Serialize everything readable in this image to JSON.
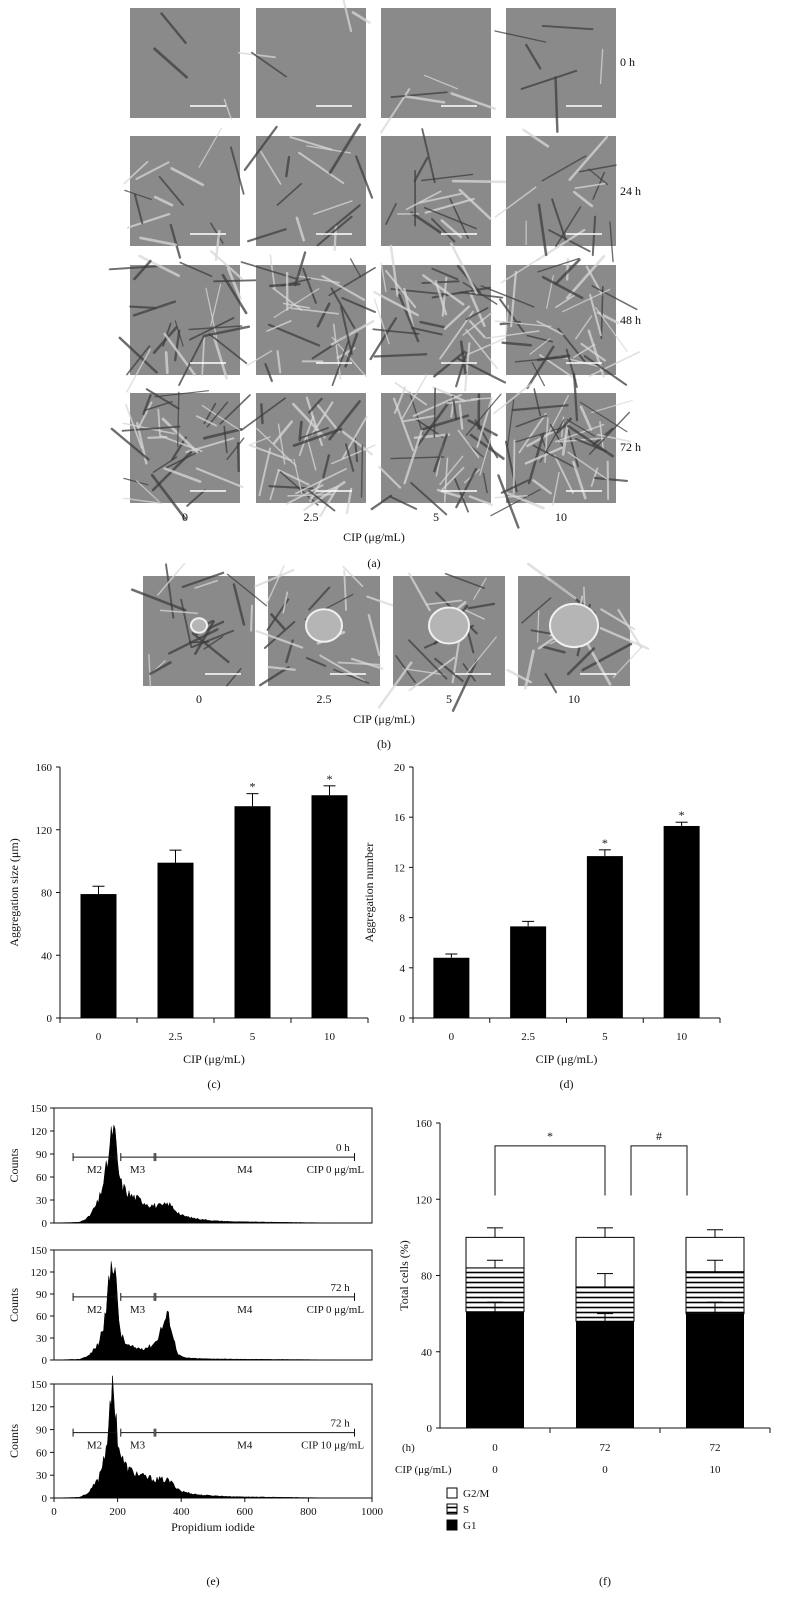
{
  "panel_a": {
    "time_labels": [
      "0 h",
      "24 h",
      "48 h",
      "72 h"
    ],
    "conc_labels": [
      "0",
      "2.5",
      "5",
      "10"
    ],
    "axis_label": "CIP (μg/mL)",
    "caption": "(a)"
  },
  "panel_b": {
    "conc_labels": [
      "0",
      "2.5",
      "5",
      "10"
    ],
    "axis_label": "CIP (μg/mL)",
    "caption": "(b)"
  },
  "chart_data": [
    {
      "id": "c",
      "type": "bar",
      "categories": [
        "0",
        "2.5",
        "5",
        "10"
      ],
      "values": [
        79,
        99,
        135,
        142
      ],
      "errors": [
        5,
        8,
        8,
        6
      ],
      "significance": [
        "",
        "",
        "*",
        "*"
      ],
      "xlabel": "CIP (μg/mL)",
      "ylabel": "Aggregation size (μm)",
      "ylim": [
        0,
        160
      ],
      "yticks": [
        0,
        40,
        80,
        120,
        160
      ],
      "caption": "(c)"
    },
    {
      "id": "d",
      "type": "bar",
      "categories": [
        "0",
        "2.5",
        "5",
        "10"
      ],
      "values": [
        4.8,
        7.3,
        12.9,
        15.3
      ],
      "errors": [
        0.3,
        0.4,
        0.5,
        0.3
      ],
      "significance": [
        "",
        "",
        "*",
        "*"
      ],
      "xlabel": "CIP (μg/mL)",
      "ylabel": "Aggregation number",
      "ylim": [
        0,
        20
      ],
      "yticks": [
        0,
        4,
        8,
        12,
        16,
        20
      ],
      "caption": "(d)"
    },
    {
      "id": "e",
      "type": "area",
      "xlabel": "Propidium iodide",
      "ylabel": "Counts",
      "xlim": [
        0,
        1000
      ],
      "xticks": [
        0,
        200,
        400,
        600,
        800,
        1000
      ],
      "ylim": [
        0,
        150
      ],
      "yticks": [
        0,
        30,
        60,
        90,
        120,
        150
      ],
      "gates": [
        {
          "name": "M2",
          "range": [
            60,
            195
          ]
        },
        {
          "name": "M3",
          "range": [
            210,
            315
          ]
        },
        {
          "name": "M4",
          "range": [
            320,
            945
          ]
        }
      ],
      "histograms": [
        {
          "time": "0 h",
          "condition": "CIP 0 μg/mL",
          "x": [
            0,
            80,
            110,
            140,
            160,
            175,
            185,
            192,
            200,
            210,
            225,
            240,
            260,
            280,
            300,
            320,
            340,
            360,
            380,
            400,
            430,
            460,
            500,
            550,
            600,
            700,
            800,
            900,
            1000
          ],
          "y": [
            0,
            1,
            8,
            28,
            60,
            95,
            125,
            110,
            75,
            52,
            42,
            36,
            32,
            28,
            24,
            22,
            22,
            25,
            18,
            10,
            7,
            5,
            3,
            2,
            1.5,
            1,
            0.5,
            0,
            0
          ]
        },
        {
          "time": "72 h",
          "condition": "CIP 0 μg/mL",
          "x": [
            0,
            80,
            110,
            140,
            160,
            175,
            185,
            192,
            200,
            210,
            225,
            240,
            260,
            280,
            300,
            320,
            340,
            355,
            365,
            375,
            390,
            410,
            450,
            500,
            600,
            700,
            800,
            900,
            1000
          ],
          "y": [
            0,
            1,
            6,
            22,
            55,
            110,
            145,
            130,
            70,
            35,
            22,
            18,
            16,
            16,
            18,
            25,
            45,
            60,
            55,
            30,
            8,
            3,
            2,
            1.5,
            1,
            0.8,
            0.5,
            0,
            0
          ]
        },
        {
          "time": "72 h",
          "condition": "CIP 10 μg/mL",
          "x": [
            0,
            80,
            110,
            140,
            160,
            175,
            185,
            192,
            200,
            210,
            225,
            240,
            260,
            280,
            300,
            320,
            340,
            360,
            380,
            400,
            430,
            460,
            500,
            550,
            600,
            700,
            800,
            900,
            1000
          ],
          "y": [
            0,
            1,
            7,
            25,
            58,
            105,
            145,
            125,
            80,
            55,
            42,
            36,
            32,
            28,
            26,
            24,
            24,
            23,
            16,
            9,
            6,
            4,
            3,
            2,
            1.5,
            1,
            0.5,
            0,
            0
          ]
        }
      ],
      "caption": "(e)"
    },
    {
      "id": "f",
      "type": "bar",
      "stacked": true,
      "ylabel": "Total cells (%)",
      "ylim": [
        0,
        160
      ],
      "yticks": [
        0,
        40,
        80,
        120,
        160
      ],
      "row_labels": [
        "(h)",
        "CIP (μg/mL)"
      ],
      "groups": [
        {
          "h": "0",
          "cip": "0",
          "G1": 61,
          "S": 23,
          "G2M": 16,
          "err_G1": 5,
          "err_S": 4,
          "err_total": 5
        },
        {
          "h": "72",
          "cip": "0",
          "G1": 56,
          "S": 18,
          "G2M": 26,
          "err_G1": 4,
          "err_S": 7,
          "err_total": 5
        },
        {
          "h": "72",
          "cip": "10",
          "G1": 60,
          "S": 22,
          "G2M": 18,
          "err_G1": 6,
          "err_S": 6,
          "err_total": 4
        }
      ],
      "brackets": [
        {
          "from": 0,
          "to": 1,
          "label": "*"
        },
        {
          "from": 1,
          "to": 2,
          "label": "#"
        }
      ],
      "legend": [
        "G2/M",
        "S",
        "G1"
      ],
      "legend_position": "bottom-left",
      "caption": "(f)"
    }
  ]
}
